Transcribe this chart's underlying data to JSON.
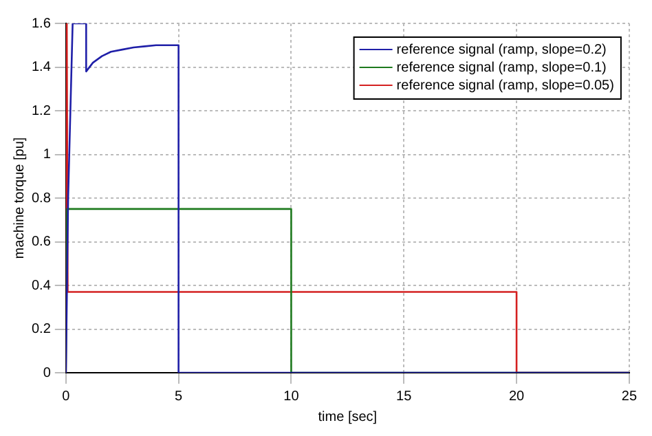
{
  "chart_data": {
    "type": "line",
    "xlabel": "time [sec]",
    "ylabel": "machine torque [pu]",
    "series": [
      {
        "name": "reference signal (ramp, slope=0.2)",
        "color": "#1f1fa8",
        "x": [
          0,
          0.1,
          0.2,
          0.3,
          0.9,
          0.9,
          1.2,
          1.6,
          2,
          2.5,
          3,
          3.5,
          4,
          5,
          5,
          25
        ],
        "values": [
          0,
          0.8,
          1.2,
          1.6,
          1.6,
          1.38,
          1.42,
          1.45,
          1.47,
          1.48,
          1.49,
          1.495,
          1.5,
          1.5,
          0,
          0
        ]
      },
      {
        "name": "reference signal (ramp, slope=0.1)",
        "color": "#1e7a1e",
        "x": [
          0,
          0.05,
          10,
          10,
          25
        ],
        "values": [
          0,
          0.75,
          0.75,
          0,
          0
        ]
      },
      {
        "name": "reference signal (ramp, slope=0.05)",
        "color": "#d42020",
        "x": [
          0,
          0.04,
          0.08,
          20,
          20,
          25
        ],
        "values": [
          0,
          1.6,
          0.37,
          0.37,
          0,
          0
        ]
      }
    ],
    "xlim": [
      0,
      25
    ],
    "xticks": [
      0,
      5,
      10,
      15,
      20,
      25
    ],
    "ylim": [
      0,
      1.6
    ],
    "yticks": [
      0,
      0.2,
      0.4,
      0.6,
      0.8,
      1,
      1.2,
      1.4,
      1.6
    ],
    "grid": true,
    "legend": "top right",
    "marker": "none",
    "line_style": "solid"
  }
}
